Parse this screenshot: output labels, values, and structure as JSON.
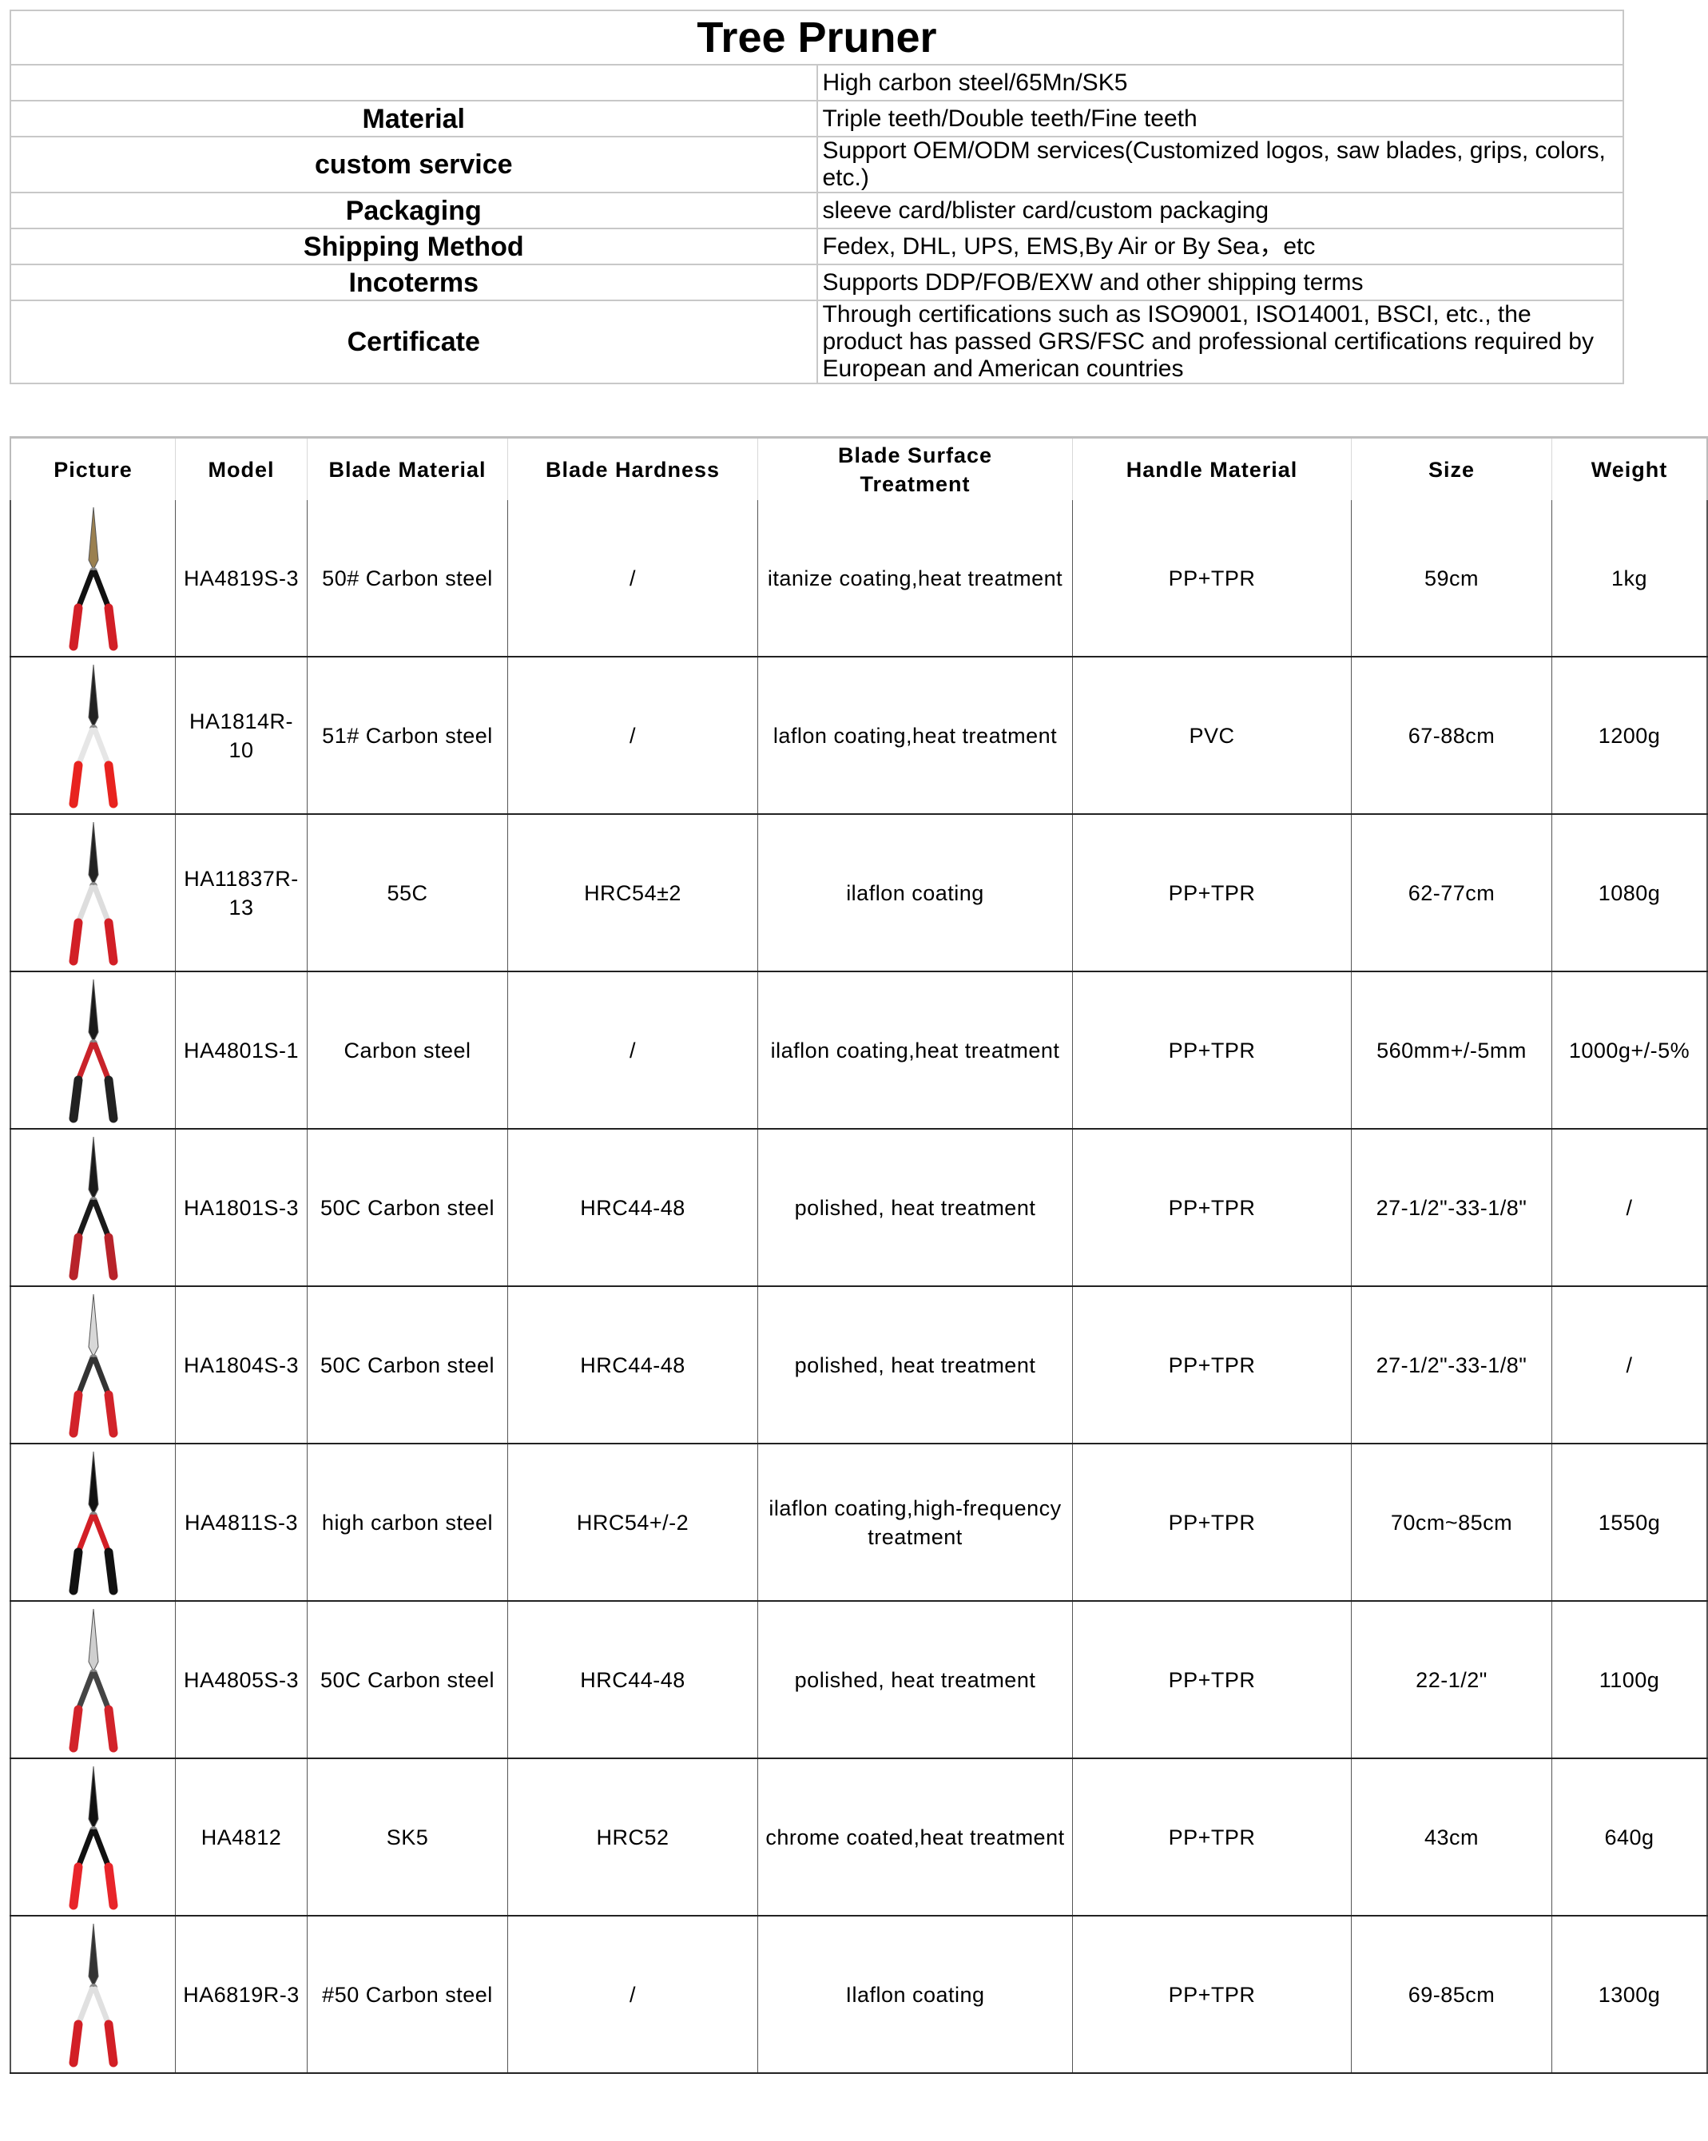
{
  "title": "Tree Pruner",
  "specs": [
    {
      "label": "",
      "value": "High carbon steel/65Mn/SK5"
    },
    {
      "label": "Material",
      "value": "Triple teeth/Double teeth/Fine teeth"
    },
    {
      "label": "custom service",
      "value": "Support OEM/ODM services(Customized logos, saw blades, grips, colors, etc.)"
    },
    {
      "label": "Packaging",
      "value": "sleeve card/blister card/custom packaging"
    },
    {
      "label": "Shipping Method",
      "value": "Fedex, DHL, UPS, EMS,By Air or By Sea，etc"
    },
    {
      "label": "Incoterms",
      "value": "Supports DDP/FOB/EXW and other shipping terms"
    },
    {
      "label": "Certificate",
      "value": "Through certifications such as ISO9001, ISO14001, BSCI, etc., the product has passed GRS/FSC and professional certifications required by European and American countries"
    }
  ],
  "columns": [
    "Picture",
    "Model",
    "Blade Material",
    "Blade Hardness",
    "Blade Surface Treatment",
    "Handle Material",
    "Size",
    "Weight"
  ],
  "products": [
    {
      "model": "HA4819S-3",
      "blade_material": "50# Carbon steel",
      "hardness": "/",
      "treatment": "itanize coating,heat treatment",
      "handle": "PP+TPR",
      "size": "59cm",
      "weight": "1kg",
      "image": {
        "blade": "#9a8050",
        "grip": "#d21f26",
        "arm": "#111111"
      }
    },
    {
      "model": "HA1814R-10",
      "blade_material": "51# Carbon steel",
      "hardness": "/",
      "treatment": "laflon coating,heat treatment",
      "handle": "PVC",
      "size": "67-88cm",
      "weight": "1200g",
      "image": {
        "blade": "#222222",
        "grip": "#e8231f",
        "arm": "#e6e6e6"
      }
    },
    {
      "model": "HA11837R-13",
      "blade_material": "55C",
      "hardness": "HRC54±2",
      "treatment": "ilaflon coating",
      "handle": "PP+TPR",
      "size": "62-77cm",
      "weight": "1080g",
      "image": {
        "blade": "#222222",
        "grip": "#d21f26",
        "arm": "#dddddd"
      }
    },
    {
      "model": "HA4801S-1",
      "blade_material": "Carbon steel",
      "hardness": "/",
      "treatment": "ilaflon coating,heat treatment",
      "handle": "PP+TPR",
      "size": "560mm+/-5mm",
      "weight": "1000g+/-5%",
      "image": {
        "blade": "#1a1a1a",
        "grip": "#222222",
        "arm": "#c9232a"
      }
    },
    {
      "model": "HA1801S-3",
      "blade_material": "50C Carbon steel",
      "hardness": "HRC44-48",
      "treatment": "polished, heat treatment",
      "handle": "PP+TPR",
      "size": "27-1/2\"-33-1/8\"",
      "weight": "/",
      "image": {
        "blade": "#1a1a1a",
        "grip": "#b8232a",
        "arm": "#1a1a1a"
      }
    },
    {
      "model": "HA1804S-3",
      "blade_material": "50C Carbon steel",
      "hardness": "HRC44-48",
      "treatment": "polished, heat treatment",
      "handle": "PP+TPR",
      "size": "27-1/2\"-33-1/8\"",
      "weight": "/",
      "image": {
        "blade": "#d8d8d8",
        "grip": "#d2232a",
        "arm": "#333333"
      }
    },
    {
      "model": "HA4811S-3",
      "blade_material": "high carbon steel",
      "hardness": "HRC54+/-2",
      "treatment": "ilaflon coating,high-frequency treatment",
      "handle": "PP+TPR",
      "size": "70cm~85cm",
      "weight": "1550g",
      "image": {
        "blade": "#111111",
        "grip": "#111111",
        "arm": "#d21f26"
      }
    },
    {
      "model": "HA4805S-3",
      "blade_material": "50C Carbon steel",
      "hardness": "HRC44-48",
      "treatment": "polished, heat treatment",
      "handle": "PP+TPR",
      "size": "22-1/2\"",
      "weight": "1100g",
      "image": {
        "blade": "#cfcfcf",
        "grip": "#d2232a",
        "arm": "#444444"
      }
    },
    {
      "model": "HA4812",
      "blade_material": "SK5",
      "hardness": "HRC52",
      "treatment": "chrome coated,heat treatment",
      "handle": "PP+TPR",
      "size": "43cm",
      "weight": "640g",
      "image": {
        "blade": "#111111",
        "grip": "#e8252a",
        "arm": "#111111"
      }
    },
    {
      "model": "HA6819R-3",
      "blade_material": "#50 Carbon steel",
      "hardness": "/",
      "treatment": "Ilaflon coating",
      "handle": "PP+TPR",
      "size": "69-85cm",
      "weight": "1300g",
      "image": {
        "blade": "#333333",
        "grip": "#d21f26",
        "arm": "#e0e0e0"
      }
    }
  ]
}
